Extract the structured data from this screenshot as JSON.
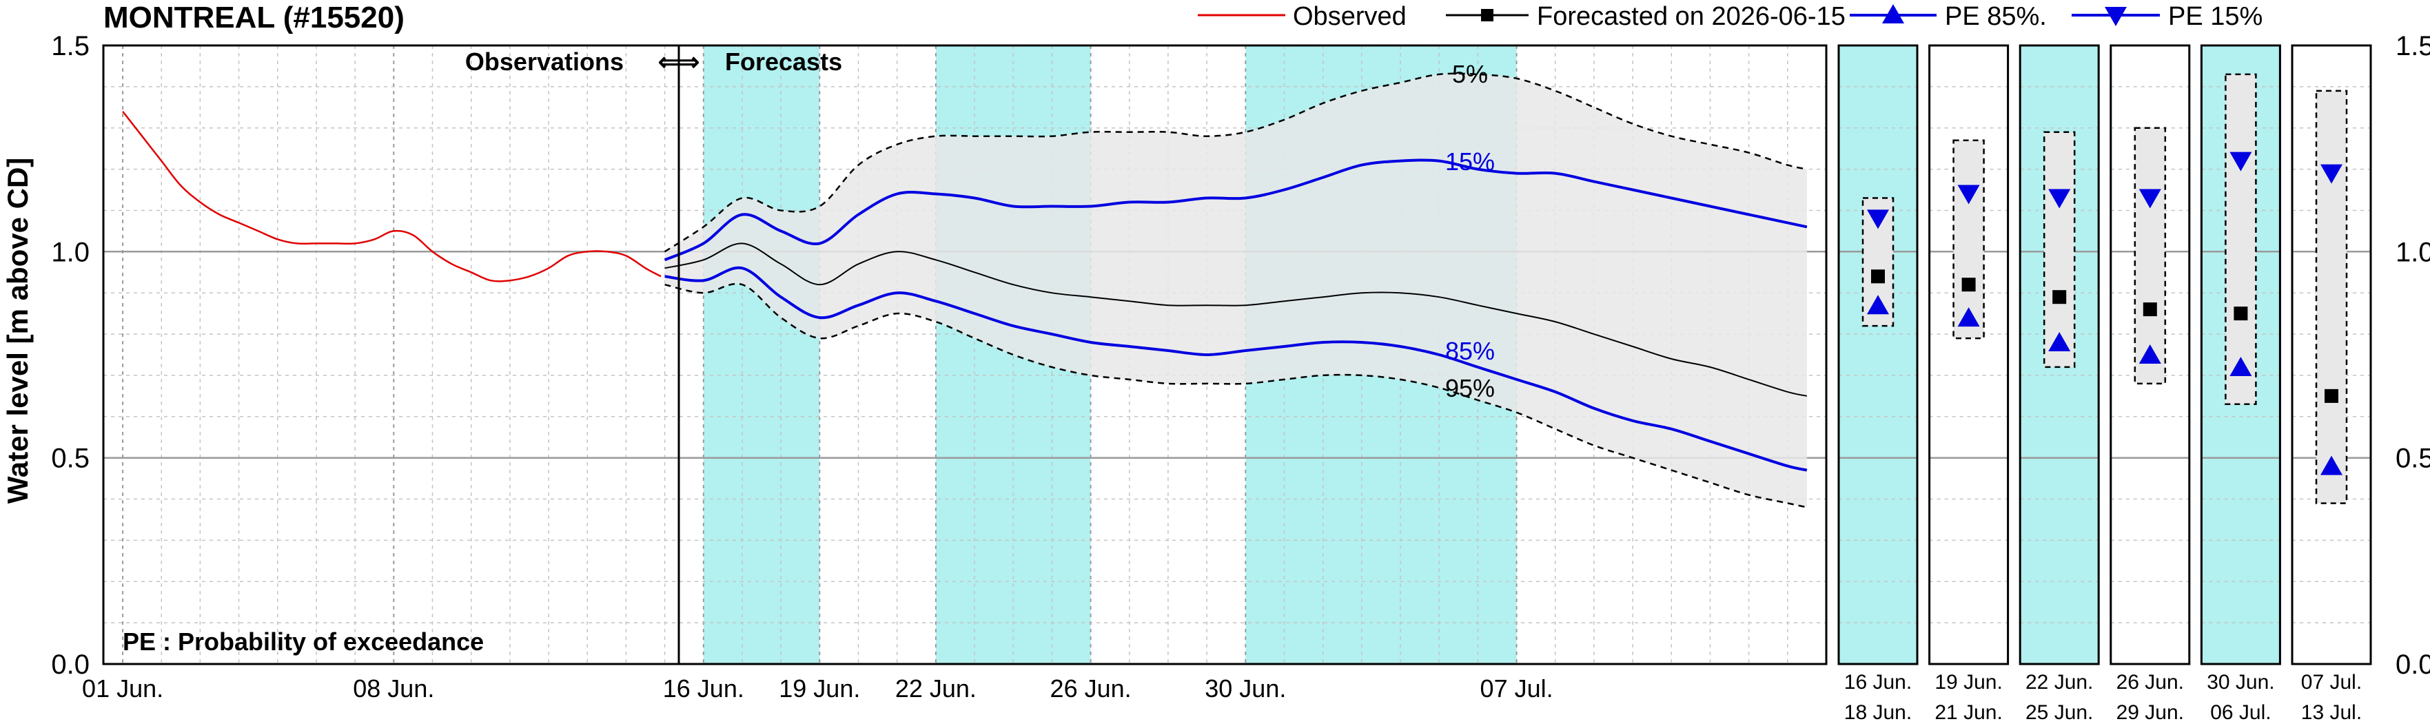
{
  "chart_data": {
    "type": "line",
    "title": "MONTREAL (#15520)",
    "ylabel": "Water level [m above CD]",
    "ylim": [
      0,
      1.5
    ],
    "yticks": [
      "0.0",
      "0.5",
      "1.0",
      "1.5"
    ],
    "grid": true,
    "legend_placement": "top-right",
    "legend": [
      "Observed",
      "Forecasted on 2026-06-15",
      "PE 85%.",
      "PE 15%"
    ],
    "section_labels": {
      "obs": "Observations",
      "arrows": "⇐⇒",
      "fc": "Forecasts"
    },
    "footnote": "PE : Probability of exceedance",
    "band_labels": {
      "p5": "5%",
      "p15": "15%",
      "p85": "85%",
      "p95": "95%"
    },
    "xtick_labels": [
      {
        "day": 1,
        "label": "01 Jun."
      },
      {
        "day": 8,
        "label": "08 Jun."
      },
      {
        "day": 16,
        "label": "16 Jun."
      },
      {
        "day": 19,
        "label": "19 Jun."
      },
      {
        "day": 22,
        "label": "22 Jun."
      },
      {
        "day": 26,
        "label": "26 Jun."
      },
      {
        "day": 30,
        "label": "30 Jun."
      },
      {
        "day": 37,
        "label": "07 Jul."
      }
    ],
    "highlight_periods": [
      [
        16,
        19
      ],
      [
        22,
        26
      ],
      [
        30,
        37
      ]
    ],
    "colors": {
      "observed": "#e00000",
      "forecast": "#000000",
      "pe": "#0000e0",
      "highlight": "#b3f0f0",
      "band": "#e8e8e8"
    },
    "series": [
      {
        "name": "Observed",
        "x": [
          1,
          1.5,
          2,
          2.5,
          3,
          3.5,
          4,
          4.5,
          5,
          5.5,
          6,
          6.5,
          7,
          7.5,
          8,
          8.5,
          9,
          9.5,
          10,
          10.5,
          11,
          11.5,
          12,
          12.5,
          13,
          13.5,
          14,
          14.5,
          14.9
        ],
        "values": [
          1.34,
          1.28,
          1.22,
          1.16,
          1.12,
          1.09,
          1.07,
          1.05,
          1.03,
          1.02,
          1.02,
          1.02,
          1.02,
          1.03,
          1.05,
          1.04,
          1.0,
          0.97,
          0.95,
          0.93,
          0.93,
          0.94,
          0.96,
          0.99,
          1.0,
          1.0,
          0.99,
          0.96,
          0.94
        ]
      },
      {
        "name": "Forecasted on 2026-06-15",
        "x": [
          15,
          16,
          17,
          18,
          19,
          20,
          21,
          22,
          23,
          24,
          25,
          26,
          27,
          28,
          29,
          30,
          31,
          32,
          33,
          34,
          35,
          36,
          37,
          38,
          39,
          40,
          41,
          42,
          43,
          44,
          44.5
        ],
        "values": [
          0.96,
          0.98,
          1.02,
          0.97,
          0.92,
          0.97,
          1.0,
          0.98,
          0.95,
          0.92,
          0.9,
          0.89,
          0.88,
          0.87,
          0.87,
          0.87,
          0.88,
          0.89,
          0.9,
          0.9,
          0.89,
          0.87,
          0.85,
          0.83,
          0.8,
          0.77,
          0.74,
          0.72,
          0.69,
          0.66,
          0.65
        ]
      },
      {
        "name": "PE 15%",
        "x": [
          15,
          16,
          17,
          18,
          19,
          20,
          21,
          22,
          23,
          24,
          25,
          26,
          27,
          28,
          29,
          30,
          31,
          32,
          33,
          34,
          35,
          36,
          37,
          38,
          39,
          40,
          41,
          42,
          43,
          44,
          44.5
        ],
        "values": [
          0.98,
          1.02,
          1.09,
          1.05,
          1.02,
          1.09,
          1.14,
          1.14,
          1.13,
          1.11,
          1.11,
          1.11,
          1.12,
          1.12,
          1.13,
          1.13,
          1.15,
          1.18,
          1.21,
          1.22,
          1.22,
          1.2,
          1.19,
          1.19,
          1.17,
          1.15,
          1.13,
          1.11,
          1.09,
          1.07,
          1.06
        ]
      },
      {
        "name": "PE 85%.",
        "x": [
          15,
          16,
          17,
          18,
          19,
          20,
          21,
          22,
          23,
          24,
          25,
          26,
          27,
          28,
          29,
          30,
          31,
          32,
          33,
          34,
          35,
          36,
          37,
          38,
          39,
          40,
          41,
          42,
          43,
          44,
          44.5
        ],
        "values": [
          0.94,
          0.93,
          0.96,
          0.89,
          0.84,
          0.87,
          0.9,
          0.88,
          0.85,
          0.82,
          0.8,
          0.78,
          0.77,
          0.76,
          0.75,
          0.76,
          0.77,
          0.78,
          0.78,
          0.77,
          0.75,
          0.72,
          0.69,
          0.66,
          0.62,
          0.59,
          0.57,
          0.54,
          0.51,
          0.48,
          0.47
        ]
      },
      {
        "name": "5%",
        "x": [
          15,
          16,
          17,
          18,
          19,
          20,
          21,
          22,
          23,
          24,
          25,
          26,
          27,
          28,
          29,
          30,
          31,
          32,
          33,
          34,
          35,
          36,
          37,
          38,
          39,
          40,
          41,
          42,
          43,
          44,
          44.5
        ],
        "values": [
          1.0,
          1.06,
          1.13,
          1.1,
          1.11,
          1.21,
          1.26,
          1.28,
          1.28,
          1.28,
          1.28,
          1.29,
          1.29,
          1.29,
          1.28,
          1.29,
          1.32,
          1.36,
          1.39,
          1.41,
          1.43,
          1.43,
          1.42,
          1.39,
          1.35,
          1.31,
          1.28,
          1.26,
          1.24,
          1.21,
          1.2
        ]
      },
      {
        "name": "95%",
        "x": [
          15,
          16,
          17,
          18,
          19,
          20,
          21,
          22,
          23,
          24,
          25,
          26,
          27,
          28,
          29,
          30,
          31,
          32,
          33,
          34,
          35,
          36,
          37,
          38,
          39,
          40,
          41,
          42,
          43,
          44,
          44.5
        ],
        "values": [
          0.92,
          0.9,
          0.92,
          0.84,
          0.79,
          0.82,
          0.85,
          0.83,
          0.79,
          0.75,
          0.72,
          0.7,
          0.69,
          0.68,
          0.68,
          0.68,
          0.69,
          0.7,
          0.7,
          0.69,
          0.67,
          0.64,
          0.61,
          0.57,
          0.53,
          0.5,
          0.47,
          0.44,
          0.41,
          0.39,
          0.38
        ]
      }
    ],
    "period_panels": [
      {
        "top_label": "16  Jun.",
        "bottom_label": "18  Jun.",
        "highlight": true,
        "max": 1.13,
        "min": 0.82,
        "pe15": 1.08,
        "forecast": 0.94,
        "pe85": 0.87
      },
      {
        "top_label": "19  Jun.",
        "bottom_label": "21  Jun.",
        "highlight": false,
        "max": 1.27,
        "min": 0.79,
        "pe15": 1.14,
        "forecast": 0.92,
        "pe85": 0.84
      },
      {
        "top_label": "22  Jun.",
        "bottom_label": "25  Jun.",
        "highlight": true,
        "max": 1.29,
        "min": 0.72,
        "pe15": 1.13,
        "forecast": 0.89,
        "pe85": 0.78
      },
      {
        "top_label": "26  Jun.",
        "bottom_label": "29  Jun.",
        "highlight": false,
        "max": 1.3,
        "min": 0.68,
        "pe15": 1.13,
        "forecast": 0.86,
        "pe85": 0.75
      },
      {
        "top_label": "30  Jun.",
        "bottom_label": "06  Jul.",
        "highlight": true,
        "max": 1.43,
        "min": 0.63,
        "pe15": 1.22,
        "forecast": 0.85,
        "pe85": 0.72
      },
      {
        "top_label": "07  Jul.",
        "bottom_label": "13  Jul.",
        "highlight": false,
        "max": 1.39,
        "min": 0.39,
        "pe15": 1.19,
        "forecast": 0.65,
        "pe85": 0.48
      }
    ]
  }
}
